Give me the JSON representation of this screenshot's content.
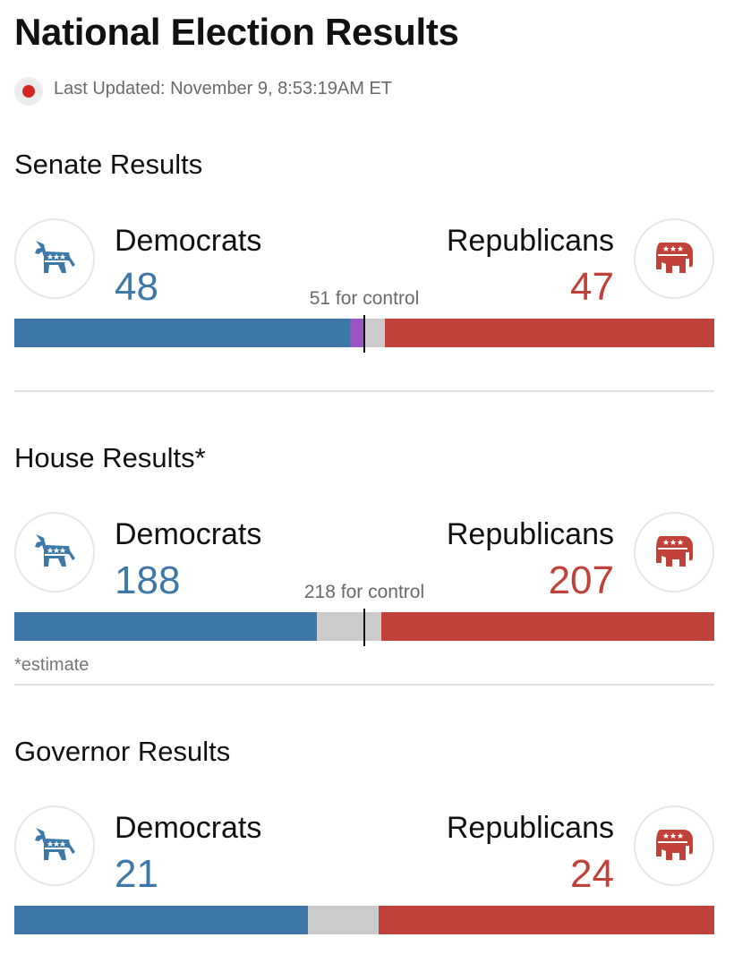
{
  "page": {
    "title": "National Election Results",
    "last_updated": "Last Updated: November 9, 8:53:19AM ET"
  },
  "colors": {
    "democrat": "#3d78a8",
    "republican": "#c0413a",
    "independent": "#9b54c4",
    "undecided": "#cbcbcb",
    "live_dot": "#d0281f"
  },
  "icons": {
    "democrat": "donkey-icon",
    "republican": "elephant-icon",
    "live": "live-dot-icon"
  },
  "senate": {
    "title": "Senate Results",
    "dem_label": "Democrats",
    "rep_label": "Republicans",
    "dem_count": "48",
    "rep_count": "47",
    "control_text": "51 for control",
    "bar": {
      "total": 100,
      "dem": 48,
      "ind": 2,
      "rep": 47,
      "control": 51
    }
  },
  "house": {
    "title": "House Results*",
    "dem_label": "Democrats",
    "rep_label": "Republicans",
    "dem_count": "188",
    "rep_count": "207",
    "control_text": "218 for control",
    "footnote": "*estimate",
    "bar": {
      "total": 435,
      "dem": 188,
      "ind": 0,
      "rep": 207,
      "control": 218
    }
  },
  "governor": {
    "title": "Governor Results",
    "dem_label": "Democrats",
    "rep_label": "Republicans",
    "dem_count": "21",
    "rep_count": "24",
    "bar": {
      "total": 50,
      "dem": 21,
      "ind": 0,
      "rep": 24
    }
  }
}
